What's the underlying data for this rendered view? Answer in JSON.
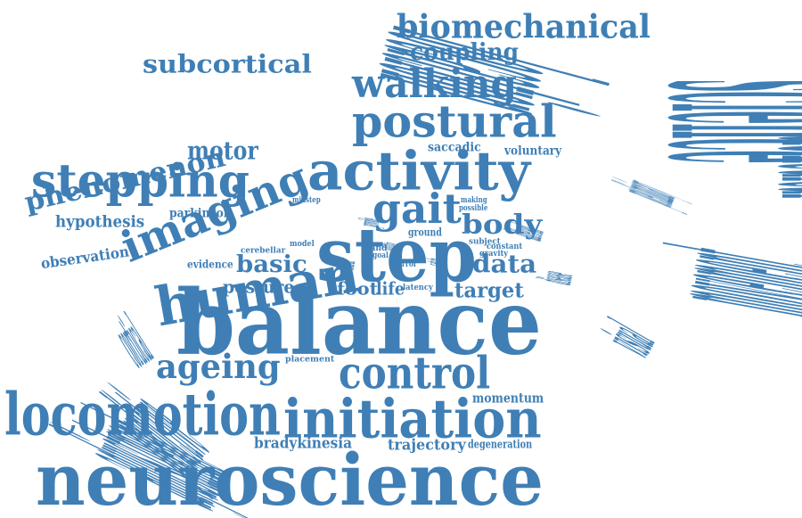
{
  "colors": {
    "word": "#3f7fb5",
    "background": "#ffffff"
  },
  "words": [
    "balance",
    "neuroscience",
    "science",
    "step",
    "coordination",
    "biomedical",
    "locomotion",
    "initiation",
    "human",
    "activity",
    "location",
    "postural",
    "stepping",
    "imaging",
    "movement",
    "control",
    "gait",
    "walking",
    "biomechanical",
    "adjustment",
    "ageing",
    "predictive",
    "subcortical",
    "phenomenon",
    "motor",
    "coupling",
    "body",
    "data",
    "basic",
    "target",
    "posture",
    "foot",
    "life",
    "visual",
    "cortical",
    "hypothesis",
    "observation",
    "parkinson",
    "evidence",
    "bradykinesia",
    "trajectory",
    "degeneration",
    "momentum",
    "saccadic",
    "voluntary",
    "preliminary",
    "different",
    "disease",
    "midstep",
    "provide",
    "making",
    "possible",
    "ground",
    "subject",
    "constant",
    "gravity",
    "cerebellar",
    "model",
    "neural",
    "land",
    "error",
    "catch",
    "latency",
    "goal",
    "placement",
    "ability"
  ]
}
